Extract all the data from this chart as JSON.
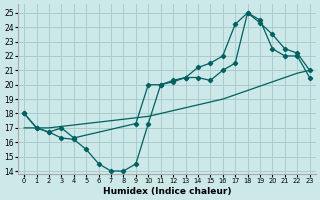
{
  "xlabel": "Humidex (Indice chaleur)",
  "bg_color": "#cce8e8",
  "grid_color": "#aacccc",
  "line_color": "#006060",
  "xlim": [
    -0.5,
    23.5
  ],
  "ylim": [
    13.8,
    25.6
  ],
  "xticks": [
    0,
    1,
    2,
    3,
    4,
    5,
    6,
    7,
    8,
    9,
    10,
    11,
    12,
    13,
    14,
    15,
    16,
    17,
    18,
    19,
    20,
    21,
    22,
    23
  ],
  "yticks": [
    14,
    15,
    16,
    17,
    18,
    19,
    20,
    21,
    22,
    23,
    24,
    25
  ],
  "line1_x": [
    0,
    1,
    2,
    3,
    4,
    5,
    6,
    7,
    8,
    9,
    10,
    11,
    12,
    13,
    14,
    15,
    16,
    17,
    18,
    19,
    20,
    21,
    22,
    23
  ],
  "line1_y": [
    18,
    17,
    16.7,
    16.3,
    16.2,
    15.5,
    14.5,
    14.0,
    14.0,
    14.5,
    17.3,
    20.0,
    20.2,
    20.5,
    20.5,
    20.3,
    21.0,
    21.5,
    25.0,
    24.5,
    22.5,
    22.0,
    22.0,
    20.5
  ],
  "line2_x": [
    0,
    1,
    2,
    3,
    4,
    9,
    10,
    11,
    12,
    13,
    14,
    15,
    16,
    17,
    18,
    19,
    20,
    21,
    22,
    23
  ],
  "line2_y": [
    18,
    17,
    16.7,
    17.0,
    16.3,
    17.3,
    20.0,
    20.0,
    20.3,
    20.5,
    21.2,
    21.5,
    22.0,
    24.2,
    25.0,
    24.3,
    23.5,
    22.5,
    22.2,
    21.0
  ],
  "line3_x": [
    0,
    1,
    2,
    3,
    4,
    5,
    6,
    7,
    8,
    9,
    10,
    11,
    12,
    13,
    14,
    15,
    16,
    17,
    18,
    19,
    20,
    21,
    22,
    23
  ],
  "line3_y": [
    17.0,
    17.0,
    17.0,
    17.1,
    17.2,
    17.3,
    17.4,
    17.5,
    17.6,
    17.7,
    17.8,
    18.0,
    18.2,
    18.4,
    18.6,
    18.8,
    19.0,
    19.3,
    19.6,
    19.9,
    20.2,
    20.5,
    20.8,
    21.0
  ]
}
